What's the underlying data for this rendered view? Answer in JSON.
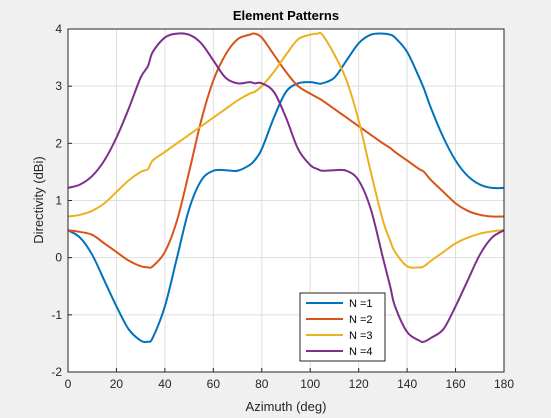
{
  "chart_data": {
    "type": "line",
    "title": "Element Patterns",
    "xlabel": "Azimuth (deg)",
    "ylabel": "Directivity (dBi)",
    "xlim": [
      0,
      180
    ],
    "ylim": [
      -2,
      4
    ],
    "xticks": [
      0,
      20,
      40,
      60,
      80,
      100,
      120,
      140,
      160,
      180
    ],
    "yticks": [
      -2,
      -1,
      0,
      1,
      2,
      3,
      4
    ],
    "grid": true,
    "legend_position": "bottom-center",
    "x": [
      0,
      5,
      10,
      15,
      20,
      25,
      30,
      33,
      35,
      40,
      45,
      50,
      55,
      60,
      65,
      70,
      75,
      77,
      80,
      85,
      90,
      95,
      100,
      103,
      105,
      110,
      115,
      120,
      125,
      130,
      133,
      135,
      140,
      145,
      147,
      150,
      155,
      160,
      165,
      170,
      175,
      180
    ],
    "series": [
      {
        "name": "N =1",
        "color": "#0072bd",
        "values": [
          0.48,
          0.35,
          0.05,
          -0.4,
          -0.85,
          -1.25,
          -1.45,
          -1.47,
          -1.4,
          -0.85,
          0.0,
          0.85,
          1.35,
          1.52,
          1.53,
          1.52,
          1.62,
          1.7,
          1.9,
          2.45,
          2.9,
          3.05,
          3.07,
          3.05,
          3.05,
          3.15,
          3.45,
          3.75,
          3.9,
          3.92,
          3.9,
          3.85,
          3.6,
          3.15,
          2.95,
          2.6,
          2.1,
          1.7,
          1.43,
          1.28,
          1.22,
          1.22
        ]
      },
      {
        "name": "N =2",
        "color": "#d95319",
        "values": [
          0.48,
          0.45,
          0.4,
          0.25,
          0.1,
          -0.05,
          -0.15,
          -0.17,
          -0.15,
          0.1,
          0.65,
          1.5,
          2.4,
          3.1,
          3.55,
          3.82,
          3.9,
          3.92,
          3.85,
          3.55,
          3.25,
          3.0,
          2.87,
          2.8,
          2.75,
          2.6,
          2.45,
          2.3,
          2.15,
          2.0,
          1.92,
          1.85,
          1.7,
          1.55,
          1.5,
          1.35,
          1.15,
          0.95,
          0.82,
          0.75,
          0.72,
          0.72
        ]
      },
      {
        "name": "N =3",
        "color": "#edb120",
        "values": [
          0.72,
          0.75,
          0.82,
          0.95,
          1.15,
          1.35,
          1.5,
          1.55,
          1.7,
          1.85,
          2.0,
          2.15,
          2.3,
          2.45,
          2.6,
          2.75,
          2.87,
          2.9,
          3.0,
          3.25,
          3.55,
          3.82,
          3.9,
          3.92,
          3.9,
          3.55,
          3.1,
          2.4,
          1.5,
          0.65,
          0.3,
          0.1,
          -0.15,
          -0.17,
          -0.15,
          -0.05,
          0.1,
          0.25,
          0.35,
          0.42,
          0.46,
          0.48
        ]
      },
      {
        "name": "N =4",
        "color": "#7e2f8e",
        "values": [
          1.22,
          1.28,
          1.43,
          1.7,
          2.1,
          2.6,
          3.15,
          3.35,
          3.6,
          3.85,
          3.92,
          3.9,
          3.75,
          3.45,
          3.15,
          3.05,
          3.07,
          3.05,
          3.05,
          2.9,
          2.45,
          1.9,
          1.62,
          1.55,
          1.52,
          1.53,
          1.52,
          1.35,
          0.85,
          0.0,
          -0.5,
          -0.85,
          -1.3,
          -1.45,
          -1.47,
          -1.4,
          -1.25,
          -0.85,
          -0.4,
          0.05,
          0.35,
          0.48
        ]
      }
    ]
  }
}
